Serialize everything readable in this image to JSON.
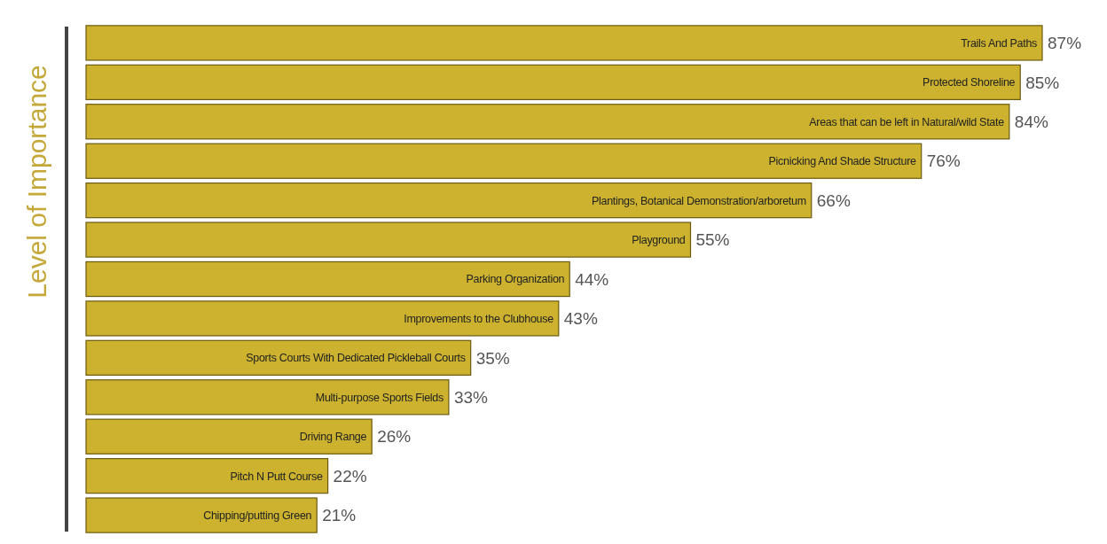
{
  "chart_data": {
    "type": "bar",
    "orientation": "horizontal",
    "ylabel": "Level of Importance",
    "categories": [
      "Trails And Paths",
      "Protected Shoreline",
      "Areas that can be left in Natural/wild State",
      "Picnicking And Shade Structure",
      "Plantings, Botanical Demonstration/arboretum",
      "Playground",
      "Parking Organization",
      "Improvements to the Clubhouse",
      "Sports Courts With Dedicated Pickleball Courts",
      "Multi-purpose Sports Fields",
      "Driving Range",
      "Pitch N Putt Course",
      "Chipping/putting Green"
    ],
    "values": [
      87,
      85,
      84,
      76,
      66,
      55,
      44,
      43,
      35,
      33,
      26,
      22,
      21
    ],
    "value_labels": [
      "87%",
      "85%",
      "84%",
      "76%",
      "66%",
      "55%",
      "44%",
      "43%",
      "35%",
      "33%",
      "26%",
      "22%",
      "21%"
    ],
    "color": "#ccb22e"
  }
}
